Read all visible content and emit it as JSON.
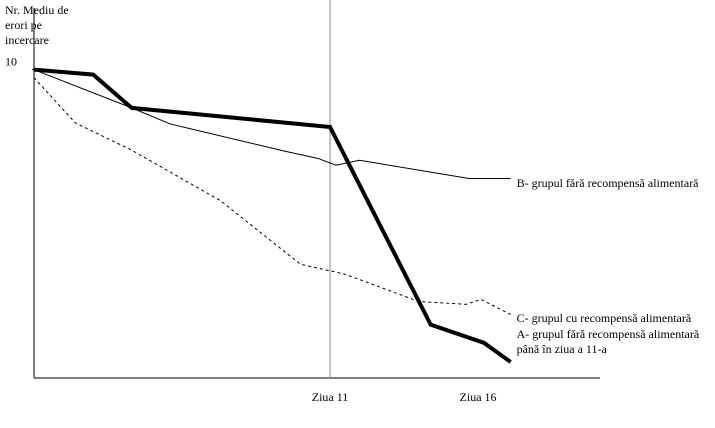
{
  "chart_data": {
    "type": "line",
    "ylabel": "Nr. Mediu de erori pe incercare",
    "xlim": [
      1,
      20.12
    ],
    "ylim": [
      0,
      12
    ],
    "xticks": [
      {
        "value": 11,
        "label": "Ziua 11"
      },
      {
        "value": 16,
        "label": "Ziua 16"
      }
    ],
    "yticks": [
      10
    ],
    "marker_line": 11,
    "series": [
      {
        "name": "B- grupul fără recompensă alimentară",
        "color": "#000000",
        "line_width": 1,
        "dash": false,
        "x": [
          1,
          4.3,
          5.6,
          9.5,
          10.6,
          11.2,
          12.0,
          15.7,
          17.1
        ],
        "values": [
          10,
          8.76,
          8.24,
          7.35,
          7.12,
          6.9,
          7.06,
          6.47,
          6.47
        ]
      },
      {
        "name": "C- grupul cu recompensă alimentară",
        "color": "#000000",
        "line_width": 1,
        "dash": true,
        "x": [
          1,
          2.4,
          4.3,
          7.3,
          10.0,
          11.5,
          14.0,
          15.6,
          16.1,
          17.1
        ],
        "values": [
          9.74,
          8.27,
          7.39,
          5.75,
          3.69,
          3.37,
          2.48,
          2.39,
          2.55,
          2.06
        ]
      },
      {
        "name": "A- grupul fără recompensă alimentară până în ziua a 11-a",
        "color": "#000000",
        "line_width": 4,
        "dash": false,
        "x": [
          1,
          3.0,
          4.3,
          11,
          14.4,
          16.2,
          17.1
        ],
        "values": [
          10,
          9.84,
          8.76,
          8.14,
          1.73,
          1.14,
          0.52
        ]
      }
    ]
  }
}
